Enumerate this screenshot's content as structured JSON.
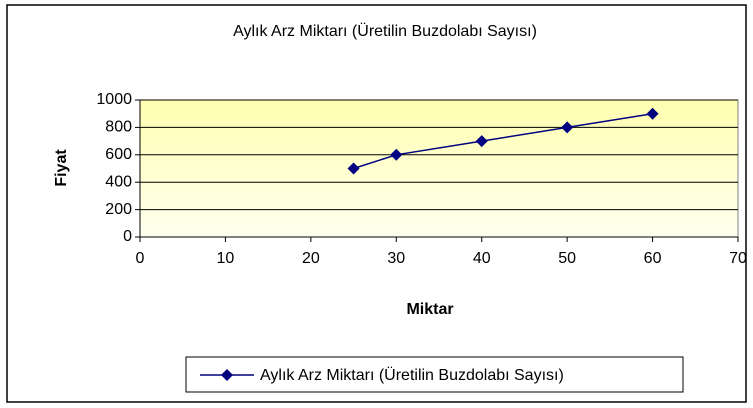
{
  "chart_data": {
    "type": "line",
    "title": "Aylık Arz Miktarı (Üretilin Buzdolabı Sayısı)",
    "xlabel": "Miktar",
    "ylabel": "Fiyat",
    "x": [
      25,
      30,
      40,
      50,
      60
    ],
    "series": [
      {
        "name": "Aylık Arz Miktarı (Üretilin Buzdolabı Sayısı)",
        "color": "#000080",
        "values": [
          500,
          600,
          700,
          800,
          900
        ]
      }
    ],
    "xlim": [
      0,
      70
    ],
    "xticks": [
      0,
      10,
      20,
      30,
      40,
      50,
      60,
      70
    ],
    "ylim": [
      0,
      1000
    ],
    "yticks": [
      0,
      200,
      400,
      600,
      800,
      1000
    ],
    "grid": true,
    "legend": "bottom"
  }
}
